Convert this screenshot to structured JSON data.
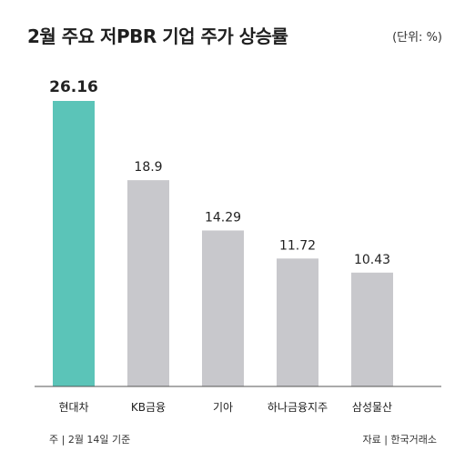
{
  "header": {
    "title": "2월 주요 저PBR 기업 주가 상승률",
    "unit": "(단위: %)"
  },
  "footer": {
    "note": "주 | 2월 14일 기준",
    "source": "자료 | 한국거래소"
  },
  "colors": {
    "highlight": "#5bc4b8",
    "bar": "#c8c8cc",
    "axis": "#555555",
    "label": "#222222"
  },
  "chart_data": {
    "type": "bar",
    "title": "2월 주요 저PBR 기업 주가 상승률",
    "xlabel": "",
    "ylabel": "",
    "ylim": [
      0,
      26.16
    ],
    "grid": false,
    "legend": "none",
    "categories": [
      "현대차",
      "KB금융",
      "기아",
      "하나금융지주",
      "삼성물산"
    ],
    "values": [
      26.16,
      18.9,
      14.29,
      11.72,
      10.43
    ],
    "value_labels": [
      "26.16",
      "18.9",
      "14.29",
      "11.72",
      "10.43"
    ],
    "highlight_index": 0
  }
}
